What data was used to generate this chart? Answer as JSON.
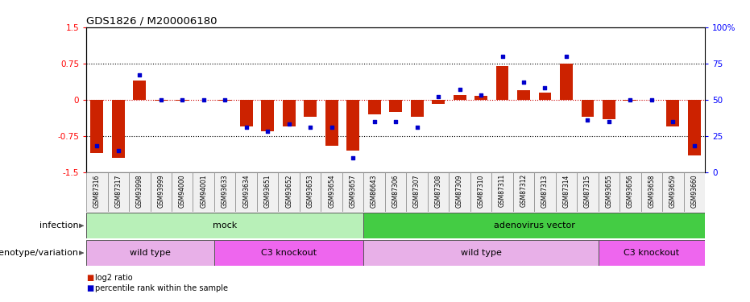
{
  "title": "GDS1826 / M200006180",
  "samples": [
    "GSM87316",
    "GSM87317",
    "GSM93998",
    "GSM93999",
    "GSM94000",
    "GSM94001",
    "GSM93633",
    "GSM93634",
    "GSM93651",
    "GSM93652",
    "GSM93653",
    "GSM93654",
    "GSM93657",
    "GSM86643",
    "GSM87306",
    "GSM87307",
    "GSM87308",
    "GSM87309",
    "GSM87310",
    "GSM87311",
    "GSM87312",
    "GSM87313",
    "GSM87314",
    "GSM87315",
    "GSM93655",
    "GSM93656",
    "GSM93658",
    "GSM93659",
    "GSM93660"
  ],
  "log2_ratio": [
    -1.1,
    -1.2,
    0.4,
    -0.02,
    -0.02,
    -0.01,
    -0.02,
    -0.55,
    -0.65,
    -0.55,
    -0.35,
    -0.95,
    -1.05,
    -0.3,
    -0.25,
    -0.35,
    -0.08,
    0.1,
    0.08,
    0.7,
    0.2,
    0.15,
    0.75,
    -0.35,
    -0.4,
    -0.02,
    -0.01,
    -0.55,
    -1.15
  ],
  "percentile_rank": [
    18,
    15,
    67,
    50,
    50,
    50,
    50,
    31,
    28,
    33,
    31,
    31,
    10,
    35,
    35,
    31,
    52,
    57,
    53,
    80,
    62,
    58,
    80,
    36,
    35,
    50,
    50,
    35,
    18
  ],
  "infection_groups": [
    {
      "label": "mock",
      "start": 0,
      "end": 12,
      "color": "#b8f0b8"
    },
    {
      "label": "adenovirus vector",
      "start": 13,
      "end": 28,
      "color": "#44cc44"
    }
  ],
  "genotype_groups": [
    {
      "label": "wild type",
      "start": 0,
      "end": 5,
      "color": "#e8b0e8"
    },
    {
      "label": "C3 knockout",
      "start": 6,
      "end": 12,
      "color": "#ee66ee"
    },
    {
      "label": "wild type",
      "start": 13,
      "end": 23,
      "color": "#e8b0e8"
    },
    {
      "label": "C3 knockout",
      "start": 24,
      "end": 28,
      "color": "#ee66ee"
    }
  ],
  "bar_color": "#cc2200",
  "dot_color": "#0000cc",
  "ylim": [
    -1.5,
    1.5
  ],
  "yticks_left": [
    -1.5,
    -0.75,
    0,
    0.75,
    1.5
  ],
  "yticks_right": [
    0,
    25,
    50,
    75,
    100
  ],
  "hlines": [
    0.75,
    0,
    -0.75
  ],
  "legend_items": [
    "log2 ratio",
    "percentile rank within the sample"
  ],
  "legend_colors": [
    "#cc2200",
    "#0000cc"
  ]
}
